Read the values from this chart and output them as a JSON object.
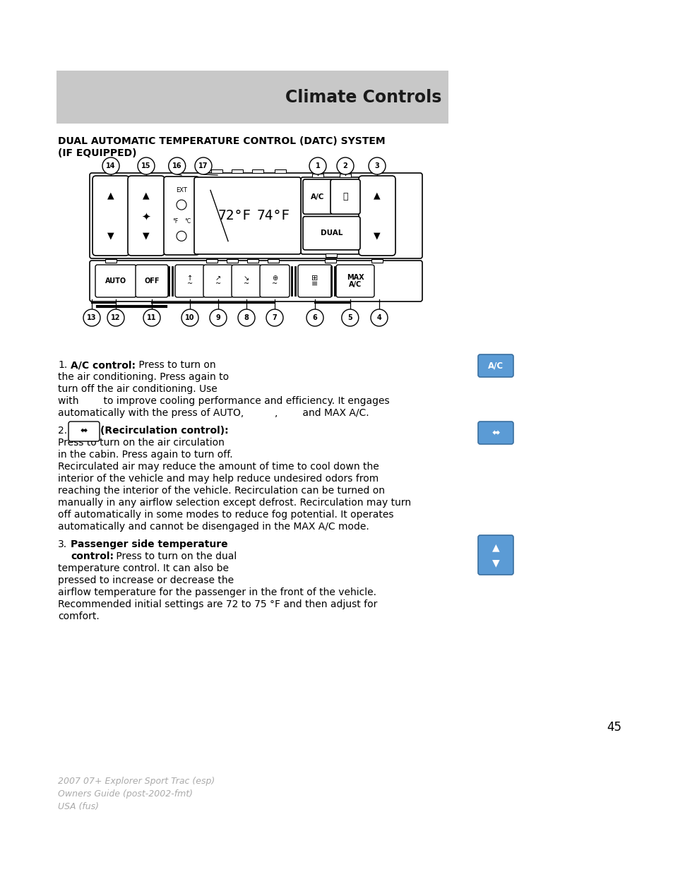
{
  "page_bg": "#ffffff",
  "header_bg": "#c8c8c8",
  "header_text": "Climate Controls",
  "header_text_color": "#1a1a1a",
  "section_title_line1": "DUAL AUTOMATIC TEMPERATURE CONTROL (DATC) SYSTEM",
  "section_title_line2": "(IF EQUIPPED)",
  "footer_lines": [
    "2007 07+ Explorer Sport Trac (esp)",
    "Owners Guide (post-2002-fmt)",
    "USA (fus)"
  ],
  "page_number": "45",
  "ac_icon_color": "#5b9bd5",
  "pass_icon_color": "#5b9bd5",
  "recirc_icon_color": "#5b9bd5"
}
